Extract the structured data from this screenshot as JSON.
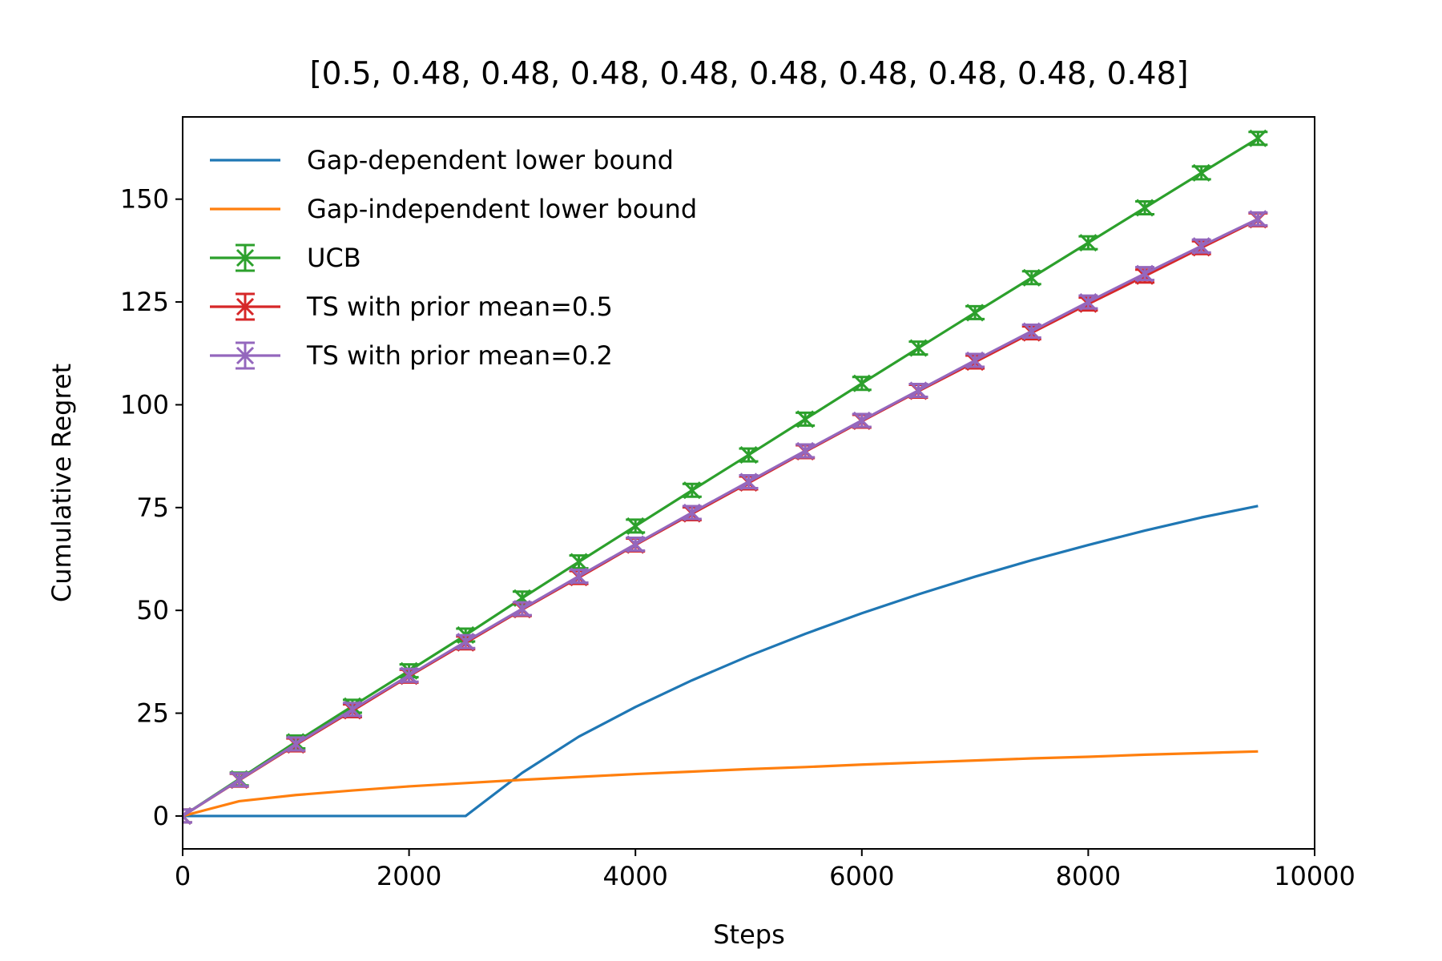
{
  "chart_data": {
    "type": "line",
    "title": "[0.5, 0.48, 0.48, 0.48, 0.48, 0.48, 0.48, 0.48, 0.48, 0.48]",
    "xlabel": "Steps",
    "ylabel": "Cumulative Regret",
    "xlim": [
      0,
      10000
    ],
    "ylim": [
      -8,
      170
    ],
    "xticks": [
      0,
      2000,
      4000,
      6000,
      8000,
      10000
    ],
    "xtick_labels": [
      "0",
      "2000",
      "4000",
      "6000",
      "8000",
      "10000"
    ],
    "yticks": [
      0,
      25,
      50,
      75,
      100,
      125,
      150
    ],
    "ytick_labels": [
      "0",
      "25",
      "50",
      "75",
      "100",
      "125",
      "150"
    ],
    "grid": false,
    "legend_position": "top-left",
    "series": [
      {
        "name": "Gap-dependent lower bound",
        "color": "#1f77b4",
        "marker": "none",
        "x": [
          0,
          500,
          1000,
          1500,
          2000,
          2500,
          3000,
          3500,
          4000,
          4500,
          5000,
          5500,
          6000,
          6500,
          7000,
          7500,
          8000,
          8500,
          9000,
          9500
        ],
        "y": [
          0,
          0,
          0,
          0,
          0,
          0,
          10.5,
          19.3,
          26.5,
          33.0,
          38.9,
          44.3,
          49.3,
          53.9,
          58.2,
          62.2,
          65.9,
          69.4,
          72.6,
          75.4
        ]
      },
      {
        "name": "Gap-independent lower bound",
        "color": "#ff7f0e",
        "marker": "none",
        "x": [
          0,
          500,
          1000,
          1500,
          2000,
          2500,
          3000,
          3500,
          4000,
          4500,
          5000,
          5500,
          6000,
          6500,
          7000,
          7500,
          8000,
          8500,
          9000,
          9500
        ],
        "y": [
          0,
          3.6,
          5.1,
          6.2,
          7.2,
          8.0,
          8.8,
          9.5,
          10.2,
          10.8,
          11.4,
          11.9,
          12.5,
          13.0,
          13.5,
          14.0,
          14.4,
          14.9,
          15.3,
          15.7
        ]
      },
      {
        "name": "UCB",
        "color": "#2ca02c",
        "marker": "x-errorbar",
        "x": [
          0,
          500,
          1000,
          1500,
          2000,
          2500,
          3000,
          3500,
          4000,
          4500,
          5000,
          5500,
          6000,
          6500,
          7000,
          7500,
          8000,
          8500,
          9000,
          9500
        ],
        "y": [
          0,
          9,
          18,
          26.7,
          35.3,
          44,
          53,
          61.8,
          70.5,
          79.2,
          87.8,
          96.5,
          105.2,
          113.8,
          122.4,
          130.9,
          139.4,
          147.9,
          156.4,
          164.8
        ]
      },
      {
        "name": "TS with prior mean=0.5",
        "color": "#d62728",
        "marker": "x-errorbar",
        "x": [
          0,
          500,
          1000,
          1500,
          2000,
          2500,
          3000,
          3500,
          4000,
          4500,
          5000,
          5500,
          6000,
          6500,
          7000,
          7500,
          8000,
          8500,
          9000,
          9500
        ],
        "y": [
          0,
          8.7,
          17.3,
          25.6,
          34,
          42.1,
          50.2,
          58,
          65.9,
          73.5,
          81,
          88.6,
          96,
          103.3,
          110.4,
          117.5,
          124.5,
          131.3,
          138.2,
          145
        ]
      },
      {
        "name": "TS with prior mean=0.2",
        "color": "#9467bd",
        "marker": "x-errorbar",
        "x": [
          0,
          500,
          1000,
          1500,
          2000,
          2500,
          3000,
          3500,
          4000,
          4500,
          5000,
          5500,
          6000,
          6500,
          7000,
          7500,
          8000,
          8500,
          9000,
          9500
        ],
        "y": [
          0,
          8.8,
          17.5,
          25.9,
          34.2,
          42.4,
          50.4,
          58.3,
          66.1,
          73.8,
          81.3,
          88.8,
          96.2,
          103.5,
          110.8,
          117.9,
          125,
          131.9,
          138.6,
          145.2
        ]
      }
    ]
  }
}
